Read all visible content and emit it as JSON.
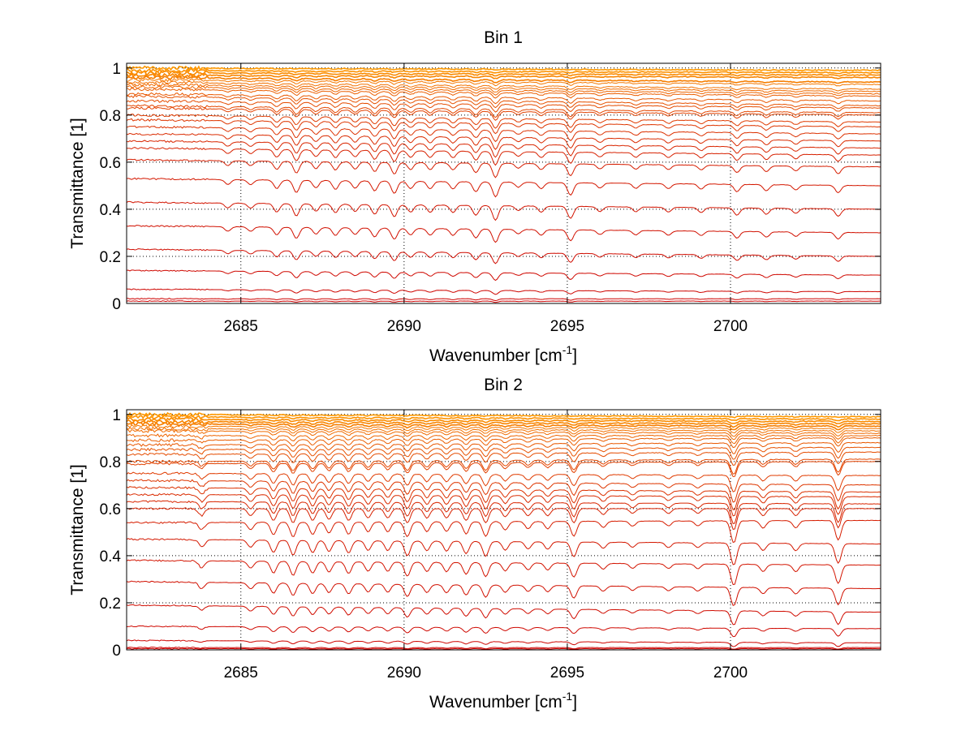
{
  "chart_data": [
    {
      "type": "line",
      "title": "Bin 1",
      "xlabel": {
        "base": "Wavenumber [cm",
        "sup": "-1",
        "close": "]"
      },
      "ylabel": "Transmittance [1]",
      "xlim": [
        2681.5,
        2704.6
      ],
      "ylim": [
        0,
        1.02
      ],
      "xticks": [
        2685,
        2690,
        2695,
        2700
      ],
      "xtick_labels": [
        "2685",
        "2690",
        "2695",
        "2700"
      ],
      "yticks": [
        0,
        0.2,
        0.4,
        0.6,
        0.8,
        1
      ],
      "ytick_labels": [
        "0",
        "0.2",
        "0.4",
        "0.6",
        "0.8",
        "1"
      ],
      "grid": true,
      "series_count": 30,
      "color_gradient": [
        "#cc0000",
        "#ff9900"
      ],
      "start_levels": [
        0.01,
        0.02,
        0.06,
        0.14,
        0.23,
        0.33,
        0.43,
        0.53,
        0.61,
        0.66,
        0.69,
        0.72,
        0.75,
        0.78,
        0.8,
        0.83,
        0.84,
        0.86,
        0.88,
        0.89,
        0.91,
        0.92,
        0.93,
        0.94,
        0.95,
        0.96,
        0.97,
        0.98,
        0.99,
        1.0
      ],
      "end_levels": [
        0.01,
        0.02,
        0.05,
        0.12,
        0.2,
        0.3,
        0.4,
        0.5,
        0.58,
        0.63,
        0.66,
        0.69,
        0.72,
        0.75,
        0.77,
        0.8,
        0.81,
        0.83,
        0.84,
        0.86,
        0.88,
        0.89,
        0.9,
        0.91,
        0.93,
        0.94,
        0.96,
        0.97,
        0.98,
        0.99
      ],
      "absorption_lines": [
        2684.6,
        2685.3,
        2686.1,
        2686.7,
        2687.3,
        2687.9,
        2688.5,
        2689.1,
        2689.7,
        2690.2,
        2690.8,
        2691.5,
        2692.2,
        2692.8,
        2693.5,
        2694.2,
        2695.1,
        2696.0,
        2697.1,
        2698.1,
        2699.1,
        2700.2,
        2701.1,
        2702.0,
        2703.3
      ],
      "absorption_depths": [
        0.02,
        0.02,
        0.035,
        0.05,
        0.03,
        0.035,
        0.03,
        0.04,
        0.05,
        0.03,
        0.03,
        0.03,
        0.04,
        0.06,
        0.02,
        0.025,
        0.05,
        0.02,
        0.02,
        0.02,
        0.02,
        0.03,
        0.025,
        0.02,
        0.03
      ]
    },
    {
      "type": "line",
      "title": "Bin 2",
      "xlabel": {
        "base": "Wavenumber [cm",
        "sup": "-1",
        "close": "]"
      },
      "ylabel": "Transmittance [1]",
      "xlim": [
        2681.5,
        2704.6
      ],
      "ylim": [
        0,
        1.02
      ],
      "xticks": [
        2685,
        2690,
        2695,
        2700
      ],
      "xtick_labels": [
        "2685",
        "2690",
        "2695",
        "2700"
      ],
      "yticks": [
        0,
        0.2,
        0.4,
        0.6,
        0.8,
        1
      ],
      "ytick_labels": [
        "0",
        "0.2",
        "0.4",
        "0.6",
        "0.8",
        "1"
      ],
      "grid": true,
      "series_count": 30,
      "color_gradient": [
        "#cc0000",
        "#ff9900"
      ],
      "start_levels": [
        0.005,
        0.01,
        0.04,
        0.1,
        0.19,
        0.29,
        0.38,
        0.47,
        0.54,
        0.6,
        0.63,
        0.66,
        0.69,
        0.72,
        0.75,
        0.79,
        0.8,
        0.83,
        0.85,
        0.87,
        0.89,
        0.91,
        0.93,
        0.94,
        0.95,
        0.96,
        0.97,
        0.98,
        0.99,
        1.0
      ],
      "end_levels": [
        0.005,
        0.01,
        0.03,
        0.09,
        0.16,
        0.26,
        0.36,
        0.45,
        0.55,
        0.6,
        0.62,
        0.65,
        0.67,
        0.7,
        0.74,
        0.8,
        0.81,
        0.84,
        0.86,
        0.88,
        0.9,
        0.91,
        0.92,
        0.93,
        0.94,
        0.95,
        0.96,
        0.97,
        0.98,
        0.99
      ],
      "absorption_lines": [
        2683.8,
        2685.3,
        2686.0,
        2686.6,
        2687.2,
        2687.7,
        2688.3,
        2688.9,
        2689.5,
        2690.1,
        2690.7,
        2691.3,
        2691.9,
        2692.5,
        2693.1,
        2693.8,
        2694.4,
        2695.2,
        2696.1,
        2697.0,
        2698.1,
        2699.0,
        2700.1,
        2701.0,
        2702.0,
        2703.3
      ],
      "absorption_depths": [
        0.03,
        0.03,
        0.05,
        0.06,
        0.05,
        0.045,
        0.05,
        0.04,
        0.04,
        0.06,
        0.04,
        0.04,
        0.05,
        0.06,
        0.035,
        0.03,
        0.03,
        0.06,
        0.025,
        0.02,
        0.02,
        0.02,
        0.09,
        0.03,
        0.03,
        0.08
      ]
    }
  ]
}
